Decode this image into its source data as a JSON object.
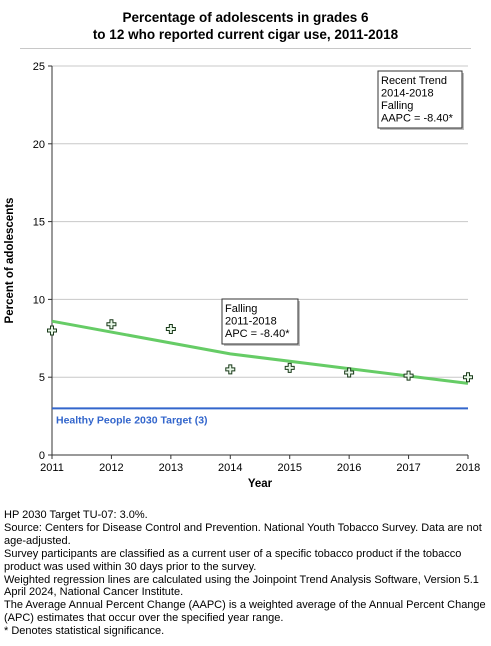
{
  "chart_data": {
    "type": "line",
    "title_lines": [
      "Percentage of adolescents in grades 6",
      "to 12 who reported current cigar use, 2011-2018"
    ],
    "xlabel": "Year",
    "ylabel": "Percent of adolescents",
    "xlim": [
      2011,
      2018
    ],
    "ylim": [
      0,
      25
    ],
    "x_ticks": [
      "2011",
      "2012",
      "2013",
      "2014",
      "2015",
      "2016",
      "2017",
      "2018"
    ],
    "y_ticks": [
      "0",
      "5",
      "10",
      "15",
      "20",
      "25"
    ],
    "grid": "horizontal",
    "observed": {
      "marker": "plus",
      "x": [
        2011,
        2012,
        2013,
        2014,
        2015,
        2016,
        2017,
        2018
      ],
      "y": [
        8.0,
        8.4,
        8.1,
        5.5,
        5.6,
        5.3,
        5.1,
        5.0
      ]
    },
    "trend_line": {
      "color": "#66cc66",
      "x": [
        2011,
        2014,
        2018
      ],
      "y": [
        8.6,
        6.5,
        4.6
      ]
    },
    "target": {
      "value": 3.0,
      "label": "Healthy People 2030 Target (3)",
      "color": "#3366cc"
    },
    "annotations": [
      {
        "lines": [
          "Falling",
          "2011-2018",
          "APC = -8.40*"
        ],
        "anchor": "mid-left"
      },
      {
        "lines": [
          "Recent Trend",
          "2014-2018",
          "Falling",
          "AAPC = -8.40*"
        ],
        "anchor": "top-right"
      }
    ]
  },
  "notes": [
    "HP 2030 Target TU-07: 3.0%.",
    "Source: Centers for Disease Control and Prevention. National Youth Tobacco Survey. Data are not age-adjusted.",
    "Survey participants are classified as a current user of a specific tobacco product if the tobacco product was used within 30 days prior to the survey.",
    "Weighted regression lines are calculated using the Joinpoint Trend Analysis Software, Version 5.1 April 2024, National Cancer Institute.",
    "The Average Annual Percent Change (AAPC) is a weighted average of the Annual Percent Change (APC) estimates that occur over the specified year range.",
    "* Denotes statistical significance."
  ]
}
